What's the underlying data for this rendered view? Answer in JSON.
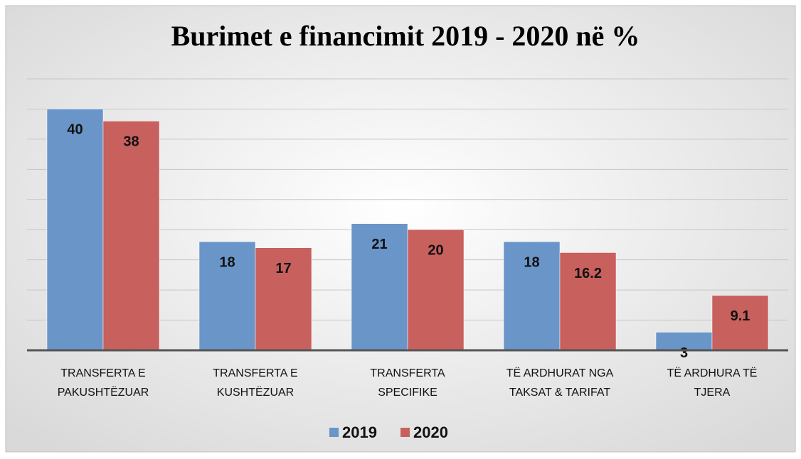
{
  "chart_data": {
    "type": "bar",
    "title": "Burimet e financimit 2019 - 2020 në %",
    "categories": [
      "TRANSFERTA E PAKUSHTËZUAR",
      "TRANSFERTA E KUSHTËZUAR",
      "TRANSFERTA SPECIFIKE",
      "TË ARDHURAT NGA TAKSAT & TARIFAT",
      "TË ARDHURA TË TJERA"
    ],
    "series": [
      {
        "name": "2019",
        "color": "#6a95c9",
        "values": [
          40,
          18,
          21,
          18,
          3
        ]
      },
      {
        "name": "2020",
        "color": "#c8605e",
        "values": [
          38,
          17,
          20,
          16.2,
          9.1
        ]
      }
    ],
    "ylim": [
      0,
      45
    ],
    "yticks": [
      0,
      5,
      10,
      15,
      20,
      25,
      30,
      35,
      40,
      45
    ],
    "grid": true,
    "legend": "bottom"
  }
}
